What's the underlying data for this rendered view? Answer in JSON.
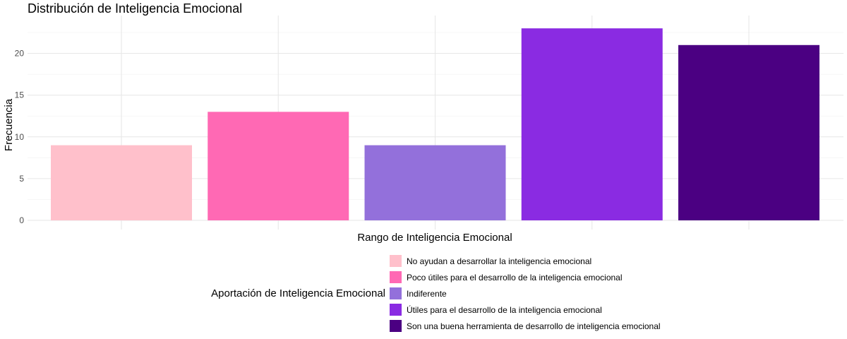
{
  "chart_data": {
    "type": "bar",
    "title": "Distribución de Inteligencia Emocional",
    "xlabel": "Rango de Inteligencia Emocional",
    "ylabel": "Frecuencia",
    "ylim": [
      0,
      24
    ],
    "yticks": [
      0,
      5,
      10,
      15,
      20
    ],
    "grid": true,
    "categories": [
      "No ayudan a desarrollar la inteligencia emocional",
      "Poco útiles para el desarrollo de la inteligencia emocional",
      "Indiferente",
      "Útiles para el desarrollo de la inteligencia emocional",
      "Son una buena herramienta de desarrollo de inteligencia emocional"
    ],
    "values": [
      9,
      13,
      9,
      23,
      21
    ],
    "colors": [
      "#FFC0CB",
      "#FF69B4",
      "#9370DB",
      "#8A2BE2",
      "#4B0082"
    ],
    "legend": {
      "title": "Aportación de Inteligencia Emocional",
      "position": "bottom"
    }
  }
}
